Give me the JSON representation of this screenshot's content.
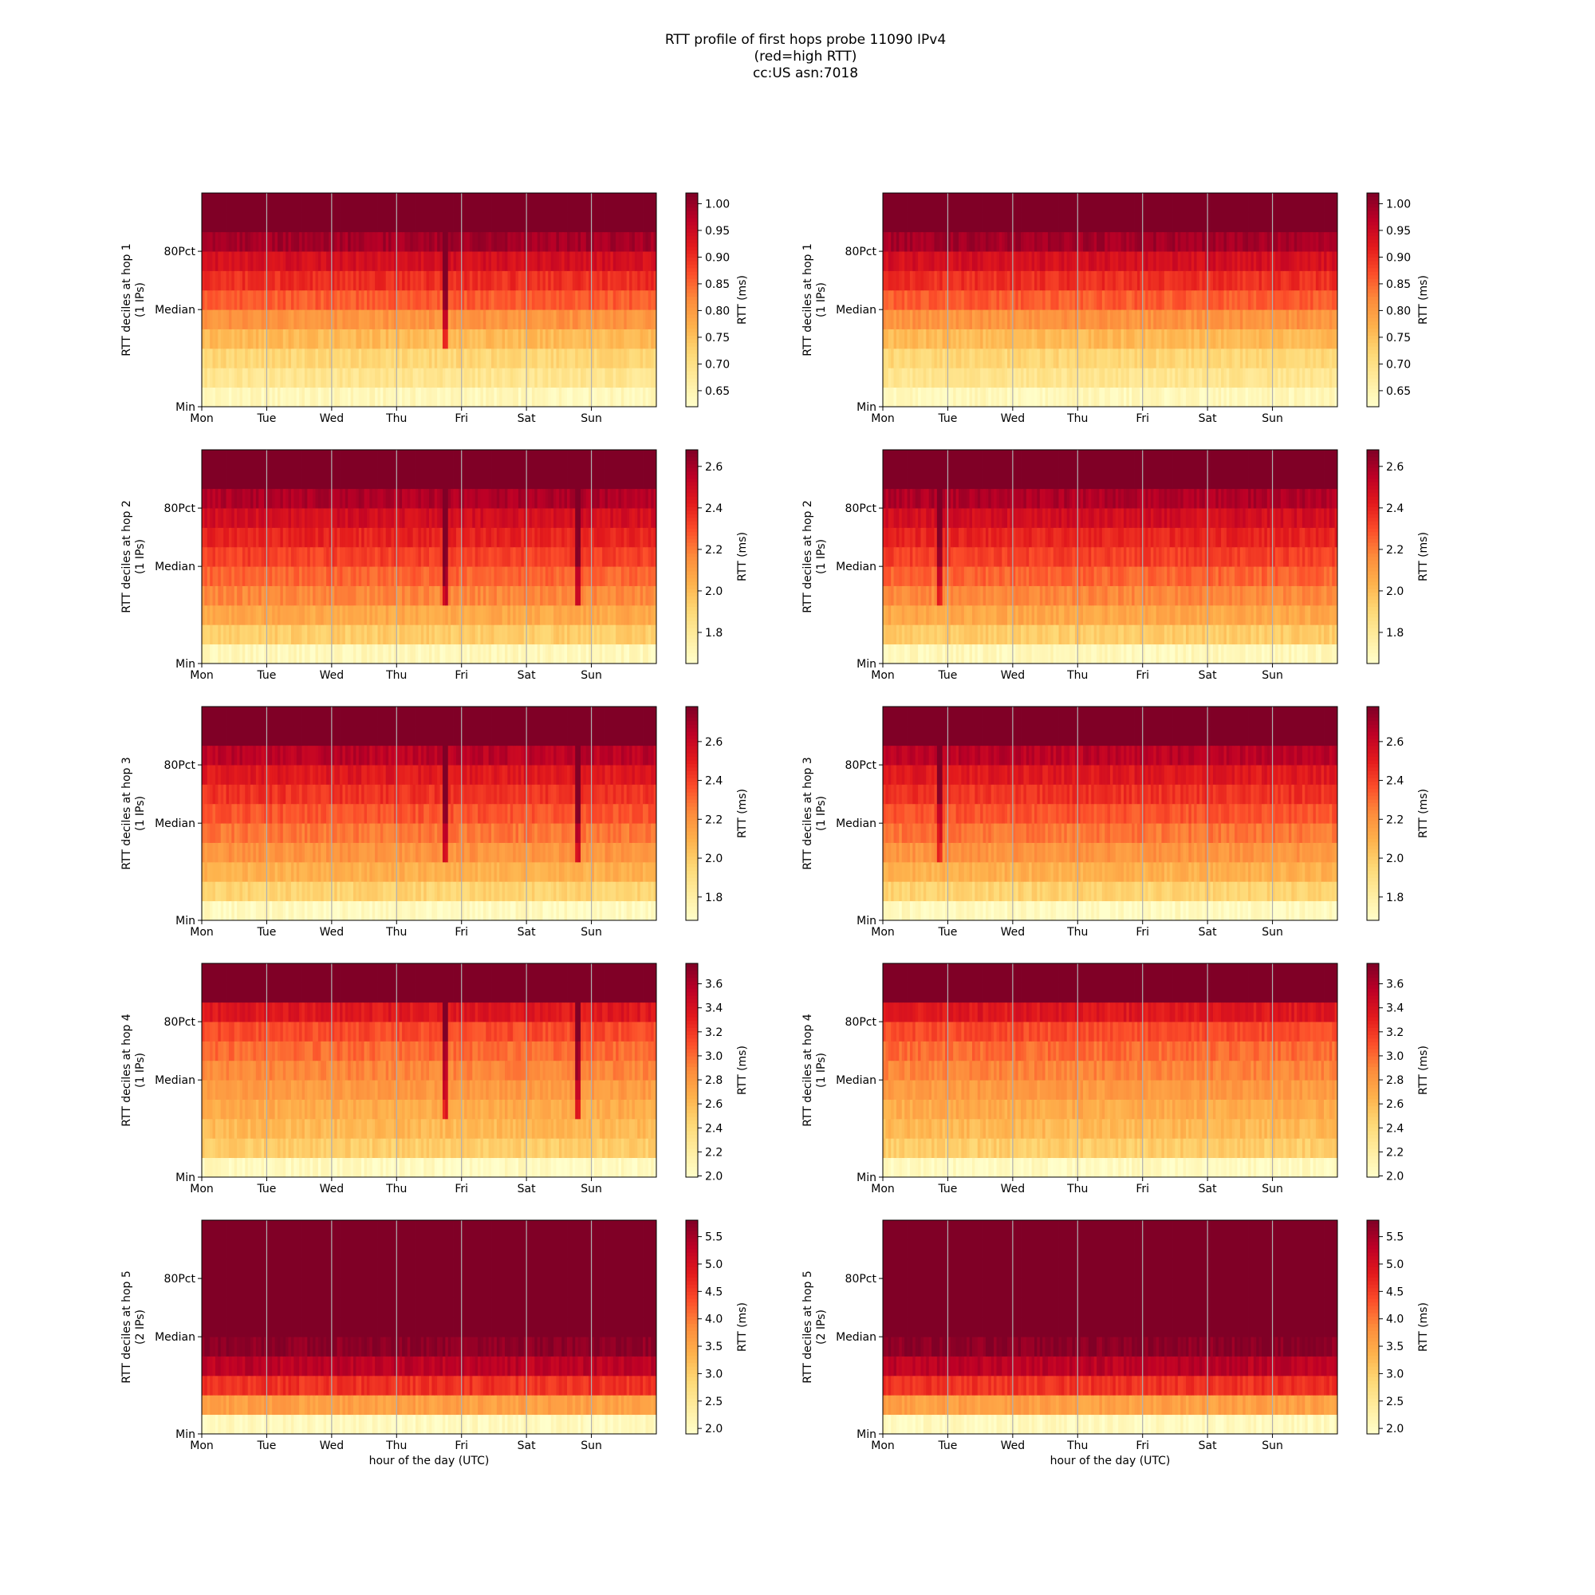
{
  "title_lines": [
    "RTT profile of first hops probe 11090 IPv4",
    "(red=high RTT)",
    "cc:US asn:7018"
  ],
  "colormap": [
    "#ffffcc",
    "#ffeda0",
    "#fed976",
    "#feb24c",
    "#fd8d3c",
    "#fc4e2a",
    "#e31a1c",
    "#bd0026",
    "#800026"
  ],
  "chart_data": {
    "type": "heatmap",
    "x_tick_labels": [
      "Mon",
      "Tue",
      "Wed",
      "Thu",
      "Fri",
      "Sat",
      "Sun"
    ],
    "y_tick_labels": [
      "Min",
      "Median",
      "80Pct"
    ],
    "xlabel": "hour of the day (UTC)",
    "colorbar_label": "RTT (ms)",
    "bins_per_day": 24,
    "panels": [
      {
        "hop": 1,
        "column": "left",
        "ylabel": "RTT deciles at hop 1",
        "ylabel2": "(1 IPs)",
        "clim": [
          0.62,
          1.02
        ],
        "cbar_ticks": [
          0.65,
          0.7,
          0.75,
          0.8,
          0.85,
          0.9,
          0.95,
          1.0
        ],
        "cbar_tick_labels": [
          "0.65",
          "0.70",
          "0.75",
          "0.80",
          "0.85",
          "0.90",
          "0.95",
          "1.00"
        ],
        "decile_rtt": [
          0.64,
          0.69,
          0.72,
          0.76,
          0.81,
          0.86,
          0.9,
          0.94,
          0.99,
          1.02,
          1.02
        ],
        "spikes": [
          {
            "x": 3.72,
            "strength": 0.35
          }
        ]
      },
      {
        "hop": 1,
        "column": "right",
        "ylabel": "RTT deciles at hop 1",
        "ylabel2": "(1 IPs)",
        "clim": [
          0.62,
          1.02
        ],
        "cbar_ticks": [
          0.65,
          0.7,
          0.75,
          0.8,
          0.85,
          0.9,
          0.95,
          1.0
        ],
        "cbar_tick_labels": [
          "0.65",
          "0.70",
          "0.75",
          "0.80",
          "0.85",
          "0.90",
          "0.95",
          "1.00"
        ],
        "decile_rtt": [
          0.64,
          0.69,
          0.72,
          0.76,
          0.81,
          0.86,
          0.9,
          0.94,
          0.99,
          1.02,
          1.02
        ],
        "spikes": []
      },
      {
        "hop": 2,
        "column": "left",
        "ylabel": "RTT deciles at hop 2",
        "ylabel2": "(1 IPs)",
        "clim": [
          1.65,
          2.68
        ],
        "cbar_ticks": [
          1.8,
          2.0,
          2.2,
          2.4,
          2.6
        ],
        "cbar_tick_labels": [
          "1.8",
          "2.0",
          "2.2",
          "2.4",
          "2.6"
        ],
        "decile_rtt": [
          1.7,
          1.95,
          2.07,
          2.17,
          2.25,
          2.33,
          2.4,
          2.48,
          2.58,
          2.68,
          2.68
        ],
        "spikes": [
          {
            "x": 3.72,
            "strength": 0.35
          },
          {
            "x": 5.78,
            "strength": 0.3
          }
        ]
      },
      {
        "hop": 2,
        "column": "right",
        "ylabel": "RTT deciles at hop 2",
        "ylabel2": "(1 IPs)",
        "clim": [
          1.65,
          2.68
        ],
        "cbar_ticks": [
          1.8,
          2.0,
          2.2,
          2.4,
          2.6
        ],
        "cbar_tick_labels": [
          "1.8",
          "2.0",
          "2.2",
          "2.4",
          "2.6"
        ],
        "decile_rtt": [
          1.7,
          1.95,
          2.07,
          2.17,
          2.25,
          2.33,
          2.4,
          2.48,
          2.58,
          2.68,
          2.68
        ],
        "spikes": [
          {
            "x": 0.85,
            "strength": 0.25
          }
        ]
      },
      {
        "hop": 3,
        "column": "left",
        "ylabel": "RTT deciles at hop 3",
        "ylabel2": "(1 IPs)",
        "clim": [
          1.68,
          2.78
        ],
        "cbar_ticks": [
          1.8,
          2.0,
          2.2,
          2.4,
          2.6
        ],
        "cbar_tick_labels": [
          "1.8",
          "2.0",
          "2.2",
          "2.4",
          "2.6"
        ],
        "decile_rtt": [
          1.72,
          1.97,
          2.1,
          2.2,
          2.28,
          2.36,
          2.44,
          2.52,
          2.64,
          2.78,
          2.78
        ],
        "spikes": [
          {
            "x": 3.72,
            "strength": 0.35
          },
          {
            "x": 5.78,
            "strength": 0.35
          }
        ]
      },
      {
        "hop": 3,
        "column": "right",
        "ylabel": "RTT deciles at hop 3",
        "ylabel2": "(1 IPs)",
        "clim": [
          1.68,
          2.78
        ],
        "cbar_ticks": [
          1.8,
          2.0,
          2.2,
          2.4,
          2.6
        ],
        "cbar_tick_labels": [
          "1.8",
          "2.0",
          "2.2",
          "2.4",
          "2.6"
        ],
        "decile_rtt": [
          1.72,
          1.97,
          2.1,
          2.2,
          2.28,
          2.36,
          2.44,
          2.52,
          2.64,
          2.78,
          2.78
        ],
        "spikes": [
          {
            "x": 0.85,
            "strength": 0.25
          }
        ]
      },
      {
        "hop": 4,
        "column": "left",
        "ylabel": "RTT deciles at hop 4",
        "ylabel2": "(1 IPs)",
        "clim": [
          1.99,
          3.77
        ],
        "cbar_ticks": [
          2.0,
          2.2,
          2.4,
          2.6,
          2.8,
          3.0,
          3.2,
          3.4,
          3.6
        ],
        "cbar_tick_labels": [
          "2.0",
          "2.2",
          "2.4",
          "2.6",
          "2.8",
          "3.0",
          "3.2",
          "3.4",
          "3.6"
        ],
        "decile_rtt": [
          2.05,
          2.5,
          2.62,
          2.7,
          2.8,
          2.9,
          3.0,
          3.12,
          3.35,
          3.77,
          3.77
        ],
        "spikes": [
          {
            "x": 3.72,
            "strength": 0.35
          },
          {
            "x": 5.78,
            "strength": 0.4
          }
        ]
      },
      {
        "hop": 4,
        "column": "right",
        "ylabel": "RTT deciles at hop 4",
        "ylabel2": "(1 IPs)",
        "clim": [
          1.99,
          3.77
        ],
        "cbar_ticks": [
          2.0,
          2.2,
          2.4,
          2.6,
          2.8,
          3.0,
          3.2,
          3.4,
          3.6
        ],
        "cbar_tick_labels": [
          "2.0",
          "2.2",
          "2.4",
          "2.6",
          "2.8",
          "3.0",
          "3.2",
          "3.4",
          "3.6"
        ],
        "decile_rtt": [
          2.05,
          2.5,
          2.62,
          2.7,
          2.8,
          2.9,
          3.0,
          3.12,
          3.35,
          3.77,
          3.77
        ],
        "spikes": []
      },
      {
        "hop": 5,
        "column": "left",
        "ylabel": "RTT deciles at hop 5",
        "ylabel2": "(2 IPs)",
        "clim": [
          1.9,
          5.8
        ],
        "cbar_ticks": [
          2.0,
          2.5,
          3.0,
          3.5,
          4.0,
          4.5,
          5.0,
          5.5
        ],
        "cbar_tick_labels": [
          "2.0",
          "2.5",
          "3.0",
          "3.5",
          "4.0",
          "4.5",
          "5.0",
          "5.5"
        ],
        "decile_rtt": [
          2.05,
          3.6,
          4.6,
          5.3,
          5.7,
          5.8,
          5.8,
          5.8,
          5.8,
          5.8,
          5.8
        ],
        "spikes": []
      },
      {
        "hop": 5,
        "column": "right",
        "ylabel": "RTT deciles at hop 5",
        "ylabel2": "(2 IPs)",
        "clim": [
          1.9,
          5.8
        ],
        "cbar_ticks": [
          2.0,
          2.5,
          3.0,
          3.5,
          4.0,
          4.5,
          5.0,
          5.5
        ],
        "cbar_tick_labels": [
          "2.0",
          "2.5",
          "3.0",
          "3.5",
          "4.0",
          "4.5",
          "5.0",
          "5.5"
        ],
        "decile_rtt": [
          2.05,
          3.6,
          4.6,
          5.3,
          5.7,
          5.8,
          5.8,
          5.8,
          5.8,
          5.8,
          5.8
        ],
        "spikes": []
      }
    ]
  }
}
